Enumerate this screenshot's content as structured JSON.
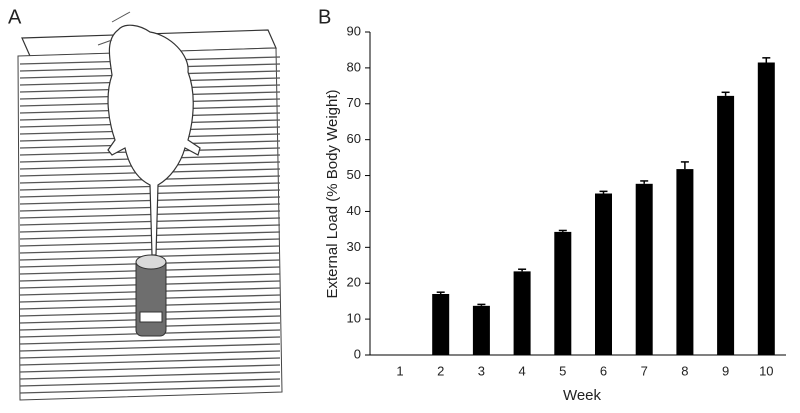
{
  "panel_labels": [
    "A",
    "B"
  ],
  "chart_data": {
    "type": "bar",
    "ylabel": "External Load (% Body Weight)",
    "xlabel": "Week",
    "categories": [
      "1",
      "2",
      "3",
      "4",
      "5",
      "6",
      "7",
      "8",
      "9",
      "10"
    ],
    "values": [
      null,
      17,
      13.7,
      23.3,
      34.3,
      45,
      47.7,
      51.8,
      72.2,
      81.5
    ],
    "errors": [
      null,
      0.5,
      0.4,
      0.6,
      0.4,
      0.6,
      0.8,
      2,
      1,
      1.3
    ],
    "color": "#000000",
    "ylim": [
      0,
      90
    ],
    "yticks": [
      0,
      10,
      20,
      30,
      40,
      50,
      60,
      70,
      80,
      90
    ]
  }
}
